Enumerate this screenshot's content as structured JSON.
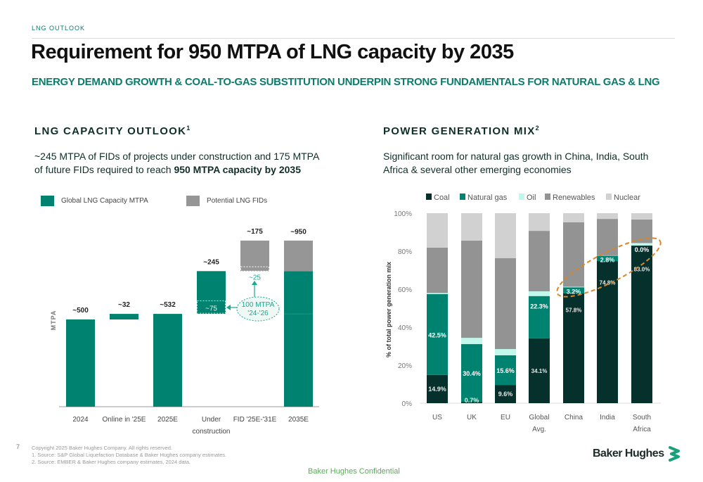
{
  "header": {
    "section_tag": "LNG OUTLOOK",
    "title": "Requirement for 950 MTPA of LNG capacity by 2035",
    "subtitle": "ENERGY DEMAND GROWTH & COAL-TO-GAS SUBSTITUTION UNDERPIN STRONG FUNDAMENTALS FOR NATURAL GAS & LNG"
  },
  "left_panel": {
    "heading": "LNG CAPACITY OUTLOOK",
    "heading_sup": "1",
    "desc_plain": "~245 MTPA of FIDs of projects under construction and 175 MTPA of future FIDs required to reach ",
    "desc_bold": "950 MTPA capacity by 2035"
  },
  "right_panel": {
    "heading": "POWER GENERATION MIX",
    "heading_sup": "2",
    "desc": "Significant room for natural gas growth in China, India, South Africa & several other emerging economies"
  },
  "colors": {
    "teal": "#008270",
    "grey": "#969696",
    "coal": "#06302b",
    "gas": "#008270",
    "oil": "#c2f7ec",
    "renewables": "#939393",
    "nuclear": "#d1d1d1",
    "highlight": "#d9862a",
    "accent_text": "#0b7b6b"
  },
  "chart_data": [
    {
      "type": "bar",
      "subtype": "waterfall",
      "title": "LNG CAPACITY OUTLOOK",
      "ylabel": "MTPA",
      "categories": [
        "2024",
        "Online in '25E",
        "2025E",
        "Under construction",
        "FID '25E-'31E",
        "2035E"
      ],
      "legend": [
        "Global LNG Capacity MTPA",
        "Potential LNG FIDs"
      ],
      "legend_position": "top-left",
      "bars": [
        {
          "category": "2024",
          "base": 0,
          "value": 500,
          "label": "~500",
          "series": "Global LNG Capacity MTPA"
        },
        {
          "category": "Online in '25E",
          "base": 500,
          "value": 32,
          "label": "~32",
          "series": "Global LNG Capacity MTPA"
        },
        {
          "category": "2025E",
          "base": 0,
          "value": 532,
          "label": "~532",
          "series": "Global LNG Capacity MTPA"
        },
        {
          "category": "Under construction",
          "base": 532,
          "value": 245,
          "label": "~245",
          "series": "Global LNG Capacity MTPA"
        },
        {
          "category": "FID '25E-'31E",
          "base": 777,
          "value": 175,
          "label": "~175",
          "series": "Potential LNG FIDs"
        },
        {
          "category": "2035E",
          "base": 0,
          "value": 950,
          "label": "~950",
          "series": "stacked",
          "segments": [
            {
              "series": "Global LNG Capacity MTPA",
              "value": 777
            },
            {
              "series": "Potential LNG FIDs",
              "value": 175
            }
          ]
        }
      ],
      "annotations": {
        "under_construction_subsegment": "~75",
        "fid_subsegment": "~25",
        "callout_line1": "100 MTPA",
        "callout_line2": "'24-'26"
      },
      "ylim": [
        0,
        1000
      ],
      "grid": false
    },
    {
      "type": "bar",
      "subtype": "stacked-100",
      "title": "POWER GENERATION MIX",
      "ylabel": "% of total power generation mix",
      "categories": [
        "US",
        "UK",
        "EU",
        "Global Avg.",
        "China",
        "India",
        "South Africa"
      ],
      "y_ticks": [
        "0%",
        "20%",
        "40%",
        "60%",
        "80%",
        "100%"
      ],
      "ylim": [
        0,
        100
      ],
      "legend_position": "top",
      "series": [
        {
          "name": "Coal",
          "values": [
            14.9,
            0.7,
            9.6,
            34.1,
            57.8,
            74.8,
            83.0
          ],
          "labels": [
            "14.9%",
            "0.7%",
            "9.6%",
            "34.1%",
            "57.8%",
            "74.8%",
            "83.0%"
          ]
        },
        {
          "name": "Natural gas",
          "values": [
            42.5,
            30.4,
            15.6,
            22.3,
            3.2,
            2.8,
            0.0
          ],
          "labels": [
            "42.5%",
            "30.4%",
            "15.6%",
            "22.3%",
            "3.2%",
            "2.8%",
            "0.0%"
          ]
        },
        {
          "name": "Oil",
          "values": [
            0.6,
            3.3,
            3.3,
            2.5,
            0.3,
            0.2,
            1.3
          ]
        },
        {
          "name": "Renewables",
          "values": [
            23.9,
            51.2,
            47.8,
            31.8,
            33.9,
            19.2,
            12.4
          ]
        },
        {
          "name": "Nuclear",
          "values": [
            18.1,
            14.4,
            23.7,
            9.3,
            4.8,
            3.0,
            3.3
          ]
        }
      ],
      "highlight": "dashed ellipse around natural gas share of China, India, South Africa"
    }
  ],
  "footer": {
    "page_number": "7",
    "notes": [
      "Copyright 2025 Baker Hughes Company. All rights reserved.",
      "1. Source: S&P Global Liquefaction Database & Baker Hughes company estimates.",
      "2. Source: EMBER & Baker Hughes company estimates, 2024 data."
    ],
    "confidential": "Baker Hughes Confidential",
    "logo_text": "Baker Hughes"
  }
}
